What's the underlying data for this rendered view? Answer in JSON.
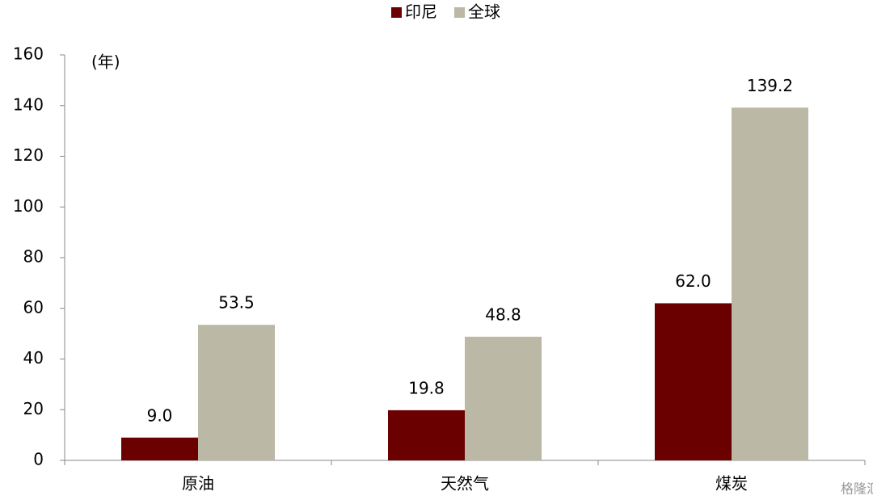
{
  "chart_data": {
    "type": "bar",
    "y_label": "(年)",
    "categories": [
      "原油",
      "天然气",
      "煤炭"
    ],
    "series": [
      {
        "name": "印尼",
        "color": "#6b0000",
        "values": [
          9.0,
          19.8,
          62.0
        ],
        "value_labels": [
          "9.0",
          "19.8",
          "62.0"
        ]
      },
      {
        "name": "全球",
        "color": "#bbb8a5",
        "values": [
          53.5,
          48.8,
          139.2
        ],
        "value_labels": [
          "53.5",
          "48.8",
          "139.2"
        ]
      }
    ],
    "ylim": [
      0,
      160
    ],
    "yticks": [
      0,
      20,
      40,
      60,
      80,
      100,
      120,
      140,
      160
    ],
    "grid": false,
    "legend": "top",
    "watermark": "格隆汇"
  }
}
